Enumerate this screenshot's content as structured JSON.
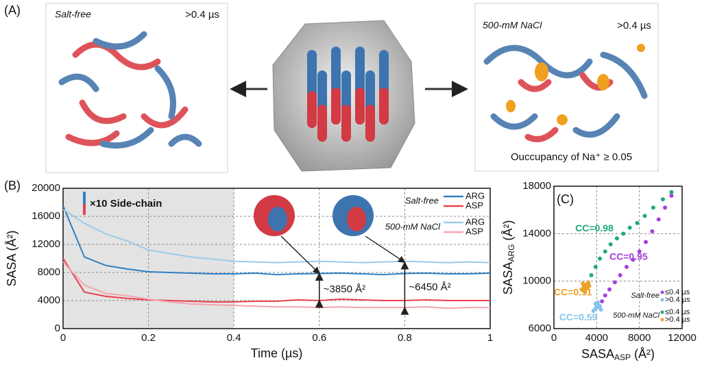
{
  "panel_labels": [
    "(A)",
    "(B)",
    "(C)"
  ],
  "panel_a": {
    "left_title": "Salt-free",
    "left_time": ">0.4 µs",
    "right_title": "500-mM NaCl",
    "right_time": ">0.4 µs",
    "right_note": "Ouccupancy of Na⁺ ≥ 0.05"
  },
  "chart_data": [
    {
      "type": "line",
      "xlabel": "Time (µs)",
      "ylabel": "SASA (Å²)",
      "x": [
        0,
        0.05,
        0.1,
        0.15,
        0.2,
        0.25,
        0.3,
        0.35,
        0.4,
        0.45,
        0.5,
        0.55,
        0.6,
        0.65,
        0.7,
        0.75,
        0.8,
        0.85,
        0.9,
        0.95,
        1
      ],
      "xlim": [
        0,
        1
      ],
      "xticks": [
        0,
        0.2,
        0.4,
        0.6,
        0.8,
        1
      ],
      "ylim": [
        0,
        20000
      ],
      "yticks": [
        0,
        4000,
        8000,
        12000,
        16000,
        20000
      ],
      "grid": true,
      "shaded_region": [
        0,
        0.4
      ],
      "inset_label": "×10 Side-chain",
      "legend_groups": [
        "Salt-free",
        "500-mM NaCl"
      ],
      "series": [
        {
          "name": "ARG",
          "color": "#2f7fc1",
          "values": [
            17500,
            10200,
            9000,
            8500,
            8100,
            8000,
            7900,
            7800,
            7800,
            7900,
            7700,
            7800,
            7850,
            7900,
            7800,
            7700,
            7850,
            7900,
            7800,
            7800,
            7900
          ]
        },
        {
          "name": "ASP",
          "color": "#e8404f",
          "values": [
            10000,
            5200,
            4600,
            4300,
            4100,
            4000,
            3900,
            3800,
            3800,
            3900,
            3900,
            4100,
            4000,
            4200,
            4100,
            4000,
            4000,
            4100,
            4000,
            4000,
            4000
          ]
        },
        {
          "name": "ARG",
          "color": "#9ccae8",
          "values": [
            17000,
            15000,
            13500,
            12500,
            11200,
            10700,
            10200,
            9900,
            9600,
            9500,
            9400,
            9500,
            9600,
            9500,
            9400,
            9500,
            9600,
            9500,
            9400,
            9500,
            9400
          ]
        },
        {
          "name": "ASP",
          "color": "#f5a3ae",
          "values": [
            9500,
            6200,
            5000,
            4700,
            4200,
            3800,
            3500,
            3400,
            3300,
            3200,
            3100,
            3100,
            3000,
            3100,
            3000,
            3000,
            3000,
            3100,
            2900,
            3000,
            3000
          ]
        }
      ],
      "annotations": [
        {
          "text": "~3850 Å²",
          "x": 0.6,
          "y1": 4000,
          "y2": 7850
        },
        {
          "text": "~6450 Å²",
          "x": 0.8,
          "y1": 3000,
          "y2": 9450
        }
      ]
    },
    {
      "type": "scatter",
      "xlabel": "SASA",
      "xlabel_sub": "ASP",
      "xlabel_unit": "(Å²)",
      "ylabel": "SASA",
      "ylabel_sub": "ARG",
      "ylabel_unit": "(Å²)",
      "xlim": [
        0,
        12000
      ],
      "xticks": [
        0,
        4000,
        8000,
        12000
      ],
      "ylim": [
        6000,
        18000
      ],
      "yticks": [
        6000,
        10000,
        14000,
        18000
      ],
      "grid": true,
      "legend_groups": [
        "Salt-free",
        "500-mM NaCl"
      ],
      "series": [
        {
          "name": "≤0.4 µs",
          "color": "#a63ee0",
          "x": [
            4500,
            4800,
            5200,
            5700,
            6200,
            6800,
            7400,
            8000,
            8600,
            9200,
            9800,
            10400,
            11000
          ],
          "y": [
            8300,
            8800,
            9300,
            9900,
            10500,
            11200,
            11800,
            12500,
            13300,
            14200,
            15200,
            16200,
            17200
          ]
        },
        {
          "name": ">0.4 µs",
          "color": "#85c3ec",
          "x": [
            3700,
            3900,
            4000,
            4100,
            4200,
            4300,
            4100,
            3900,
            4400
          ],
          "y": [
            7500,
            7700,
            7900,
            8000,
            7800,
            7900,
            8200,
            8100,
            7600
          ]
        },
        {
          "name": "≤0.4 µs",
          "color": "#20a87c",
          "x": [
            3200,
            3500,
            3900,
            4300,
            4800,
            5300,
            5900,
            6500,
            7100,
            7800,
            8500,
            9300,
            10200,
            11000
          ],
          "y": [
            9800,
            10500,
            11200,
            11900,
            12500,
            13100,
            13600,
            14000,
            14500,
            14900,
            15500,
            16200,
            16900,
            17500
          ]
        },
        {
          "name": ">0.4 µs",
          "color": "#eaa227",
          "x": [
            2600,
            2800,
            3000,
            3100,
            3200,
            2900,
            2700,
            3300
          ],
          "y": [
            9300,
            9500,
            9700,
            9400,
            9900,
            9100,
            9800,
            9600
          ]
        }
      ],
      "annotations": [
        {
          "text": "CC=0.98",
          "x": 2000,
          "y": 14400,
          "series": 2
        },
        {
          "text": "CC=0.95",
          "x": 5200,
          "y": 12000,
          "series": 0
        },
        {
          "text": "CC=0.51",
          "x": 0,
          "y": 9000,
          "series": 3
        },
        {
          "text": "CC=0.59",
          "x": 500,
          "y": 6900,
          "series": 1
        }
      ]
    }
  ]
}
